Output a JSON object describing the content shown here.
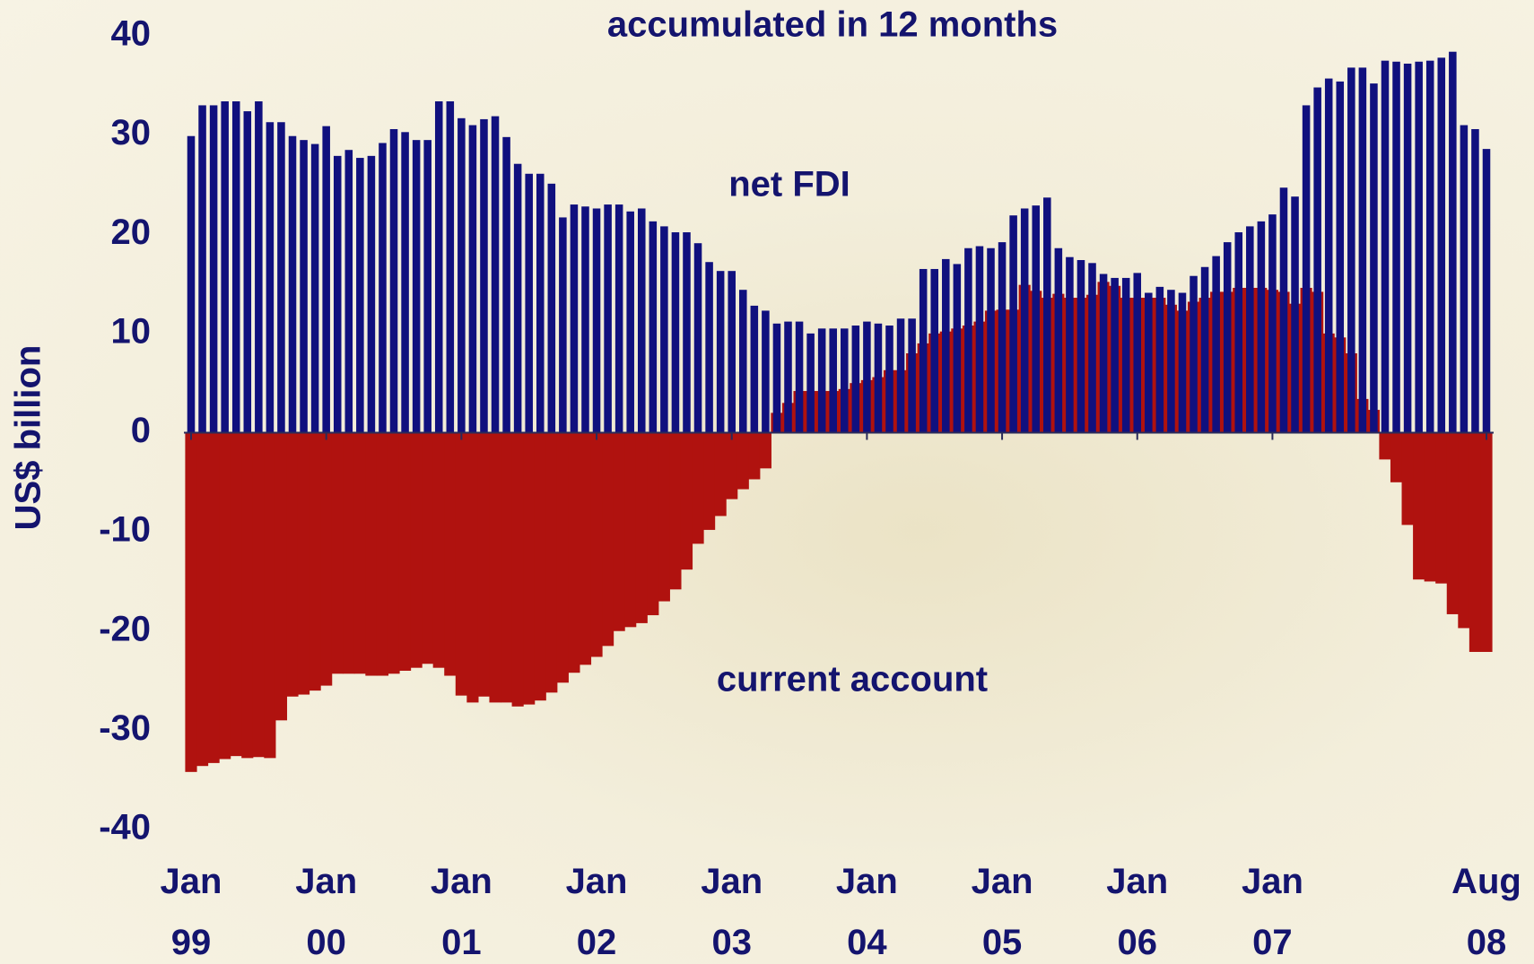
{
  "chart_data": {
    "type": "bar",
    "title": "accumulated in 12 months",
    "y_label": "US$ billion",
    "annotations": [
      "net FDI",
      "current account"
    ],
    "ylim": [
      -40,
      40
    ],
    "yticks": [
      -40,
      -30,
      -20,
      -10,
      0,
      10,
      20,
      30,
      40
    ],
    "categories": [
      "Jan 99",
      null,
      null,
      null,
      null,
      null,
      null,
      null,
      null,
      null,
      null,
      null,
      "Jan 00",
      null,
      null,
      null,
      null,
      null,
      null,
      null,
      null,
      null,
      null,
      null,
      "Jan 01",
      null,
      null,
      null,
      null,
      null,
      null,
      null,
      null,
      null,
      null,
      null,
      "Jan 02",
      null,
      null,
      null,
      null,
      null,
      null,
      null,
      null,
      null,
      null,
      null,
      "Jan 03",
      null,
      null,
      null,
      null,
      null,
      null,
      null,
      null,
      null,
      null,
      null,
      "Jan 04",
      null,
      null,
      null,
      null,
      null,
      null,
      null,
      null,
      null,
      null,
      null,
      "Jan 05",
      null,
      null,
      null,
      null,
      null,
      null,
      null,
      null,
      null,
      null,
      null,
      "Jan 06",
      null,
      null,
      null,
      null,
      null,
      null,
      null,
      null,
      null,
      null,
      null,
      "Jan 07",
      null,
      null,
      null,
      null,
      null,
      null,
      null,
      null,
      null,
      null,
      null,
      null,
      null,
      null,
      null,
      null,
      null,
      null,
      "Aug 08"
    ],
    "series": [
      {
        "name": "current account",
        "color": "#b0120f",
        "values": [
          -34.2,
          -33.6,
          -33.3,
          -32.9,
          -32.6,
          -32.8,
          -32.7,
          -32.8,
          -29,
          -26.6,
          -26.4,
          -26,
          -25.5,
          -24.3,
          -24.3,
          -24.3,
          -24.5,
          -24.5,
          -24.3,
          -24,
          -23.7,
          -23.3,
          -23.7,
          -24.5,
          -26.5,
          -27.2,
          -26.6,
          -27.2,
          -27.2,
          -27.6,
          -27.4,
          -27,
          -26.2,
          -25.2,
          -24.2,
          -23.4,
          -22.6,
          -21.5,
          -20,
          -19.6,
          -19.2,
          -18.4,
          -17,
          -15.8,
          -13.8,
          -11.2,
          -9.8,
          -8.4,
          -6.7,
          -5.7,
          -4.7,
          -3.6,
          2,
          3,
          4.2,
          4.2,
          4.2,
          4.2,
          4.4,
          5,
          5.3,
          5.6,
          6.3,
          6.3,
          8,
          9,
          10,
          10.2,
          10.5,
          10.8,
          11.2,
          12.3,
          12.4,
          12.4,
          14.9,
          14.3,
          13.6,
          14,
          13.6,
          13.6,
          13.9,
          15.2,
          14.8,
          13.6,
          13.6,
          13.6,
          13.6,
          12.9,
          12.3,
          13.2,
          13.6,
          14.2,
          14.2,
          14.6,
          14.6,
          14.6,
          14.4,
          14.2,
          13,
          14.6,
          14.2,
          10,
          9.6,
          8,
          3.4,
          2.3,
          -2.7,
          -5,
          -9.3,
          -14.8,
          -15,
          -15.2,
          -18.3,
          -19.7,
          -22.1,
          -22.1
        ]
      },
      {
        "name": "net FDI",
        "color": "#10107e",
        "values": [
          29.9,
          33,
          33,
          33.4,
          33.4,
          32.4,
          33.4,
          31.3,
          31.3,
          29.9,
          29.5,
          29.1,
          30.9,
          27.9,
          28.5,
          27.7,
          27.9,
          29.2,
          30.6,
          30.3,
          29.5,
          29.5,
          33.4,
          33.4,
          31.7,
          31,
          31.6,
          31.9,
          29.8,
          27.1,
          26.1,
          26.1,
          25.1,
          21.7,
          23,
          22.8,
          22.6,
          23,
          23,
          22.3,
          22.6,
          21.3,
          20.8,
          20.2,
          20.2,
          19.1,
          17.2,
          16.3,
          16.3,
          14.4,
          12.8,
          12.3,
          11,
          11.2,
          11.2,
          10,
          10.5,
          10.5,
          10.5,
          10.8,
          11.2,
          11,
          10.8,
          11.5,
          11.5,
          16.5,
          16.5,
          17.5,
          17,
          18.6,
          18.8,
          18.6,
          19.2,
          21.9,
          22.6,
          22.9,
          23.7,
          18.6,
          17.7,
          17.4,
          17.1,
          16,
          15.6,
          15.6,
          16.1,
          14.1,
          14.7,
          14.4,
          14.1,
          15.8,
          16.7,
          17.8,
          19.2,
          20.2,
          20.8,
          21.3,
          22,
          24.7,
          23.8,
          33,
          34.8,
          35.7,
          35.4,
          36.8,
          36.8,
          35.2,
          37.5,
          37.4,
          37.2,
          37.4,
          37.5,
          37.8,
          38.4,
          31,
          30.6,
          28.6
        ]
      }
    ]
  }
}
